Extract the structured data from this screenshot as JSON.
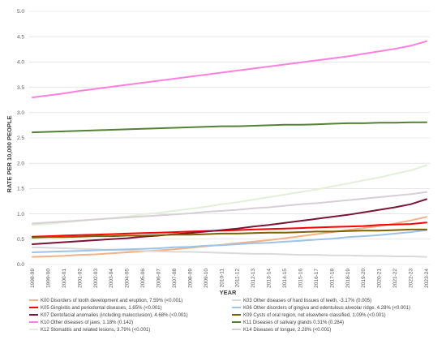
{
  "chart_data": {
    "type": "line",
    "xlabel": "YEAR",
    "ylabel": "RATE PER 10,000 PEOPLE",
    "ylim": [
      0,
      5.0
    ],
    "y_ticks": [
      "0.0",
      "0.5",
      "1.0",
      "1.5",
      "2.0",
      "2.5",
      "3.0",
      "3.5",
      "4.0",
      "4.5",
      "5.0"
    ],
    "grid": "horizontal",
    "legend_position": "bottom",
    "x": [
      "1998-99",
      "1999-00",
      "2000-01",
      "2001-02",
      "2002-03",
      "2003-04",
      "2004-05",
      "2005-06",
      "2006-07",
      "2007-08",
      "2008-09",
      "2009-10",
      "2010-11",
      "2011-12",
      "2012-13",
      "2013-14",
      "2014-15",
      "2015-16",
      "2016-17",
      "2017-18",
      "2018-19",
      "2019-20",
      "2020-21",
      "2021-22",
      "2022-23",
      "2023-24"
    ],
    "series": [
      {
        "name": "K00 Disorders of tooth development and eruption, 7.59% (<0.001)",
        "color": "#f4b183",
        "values": [
          0.15,
          0.16,
          0.17,
          0.19,
          0.2,
          0.22,
          0.24,
          0.26,
          0.28,
          0.3,
          0.33,
          0.36,
          0.39,
          0.42,
          0.45,
          0.48,
          0.52,
          0.56,
          0.6,
          0.64,
          0.68,
          0.72,
          0.76,
          0.81,
          0.87,
          0.94
        ]
      },
      {
        "name": "K03 Other diseases of hard tissues of teeth, -3.17% (0.005)",
        "color": "#d9d9d9",
        "values": [
          0.34,
          0.33,
          0.32,
          0.31,
          0.3,
          0.29,
          0.28,
          0.27,
          0.26,
          0.25,
          0.25,
          0.24,
          0.23,
          0.22,
          0.21,
          0.21,
          0.2,
          0.19,
          0.19,
          0.18,
          0.18,
          0.17,
          0.17,
          0.16,
          0.16,
          0.15
        ]
      },
      {
        "name": "K05 Gingivitis and periodontal diseases, 1.65% (<0.001)",
        "color": "#ff0000",
        "values": [
          0.55,
          0.56,
          0.57,
          0.58,
          0.59,
          0.6,
          0.61,
          0.62,
          0.63,
          0.64,
          0.65,
          0.66,
          0.67,
          0.68,
          0.69,
          0.7,
          0.71,
          0.72,
          0.73,
          0.74,
          0.75,
          0.76,
          0.78,
          0.79,
          0.8,
          0.83
        ]
      },
      {
        "name": "K06 Other disorders of gingiva and edentulous alveolar ridge, 4.28% (<0.001)",
        "color": "#9dc3e6",
        "values": [
          0.24,
          0.25,
          0.26,
          0.27,
          0.28,
          0.29,
          0.3,
          0.31,
          0.32,
          0.34,
          0.35,
          0.37,
          0.38,
          0.4,
          0.42,
          0.43,
          0.45,
          0.47,
          0.49,
          0.51,
          0.54,
          0.56,
          0.58,
          0.61,
          0.64,
          0.68
        ]
      },
      {
        "name": "K07 Dentofacial anomalies (including malocclusion), 4.68% (<0.001)",
        "color": "#7b1535",
        "values": [
          0.4,
          0.42,
          0.44,
          0.46,
          0.48,
          0.5,
          0.52,
          0.55,
          0.57,
          0.6,
          0.62,
          0.65,
          0.68,
          0.71,
          0.75,
          0.78,
          0.82,
          0.86,
          0.9,
          0.94,
          0.98,
          1.03,
          1.08,
          1.13,
          1.19,
          1.29
        ]
      },
      {
        "name": "K09 Cysts of oral region, not elsewhere classified, 1.09% (<0.001)",
        "color": "#806000",
        "values": [
          0.53,
          0.54,
          0.54,
          0.55,
          0.56,
          0.56,
          0.57,
          0.57,
          0.58,
          0.59,
          0.59,
          0.6,
          0.61,
          0.61,
          0.62,
          0.63,
          0.63,
          0.64,
          0.65,
          0.65,
          0.66,
          0.67,
          0.67,
          0.68,
          0.69,
          0.69
        ]
      },
      {
        "name": "K10 Other diseases of jaws, 1.18% (0.142)",
        "color": "#ff7fe0",
        "values": [
          3.3,
          3.34,
          3.38,
          3.43,
          3.47,
          3.51,
          3.55,
          3.59,
          3.63,
          3.67,
          3.71,
          3.75,
          3.79,
          3.83,
          3.87,
          3.91,
          3.95,
          3.99,
          4.03,
          4.07,
          4.11,
          4.16,
          4.21,
          4.26,
          4.32,
          4.41
        ]
      },
      {
        "name": "K11 Diseases of salivary glands 0.31% (0.284)",
        "color": "#548235",
        "values": [
          2.61,
          2.62,
          2.63,
          2.64,
          2.65,
          2.66,
          2.67,
          2.68,
          2.69,
          2.7,
          2.71,
          2.72,
          2.73,
          2.73,
          2.74,
          2.75,
          2.76,
          2.76,
          2.77,
          2.78,
          2.79,
          2.79,
          2.8,
          2.8,
          2.81,
          2.81
        ]
      },
      {
        "name": "K12 Stomatitis and related lesions, 3.79% (<0.001)",
        "color": "#e2f0d9",
        "values": [
          0.78,
          0.8,
          0.83,
          0.86,
          0.89,
          0.92,
          0.95,
          0.99,
          1.02,
          1.06,
          1.1,
          1.14,
          1.19,
          1.23,
          1.28,
          1.33,
          1.38,
          1.43,
          1.48,
          1.54,
          1.6,
          1.66,
          1.72,
          1.79,
          1.86,
          1.96
        ]
      },
      {
        "name": "K14 Diseases of tongue, 2.28% (<0.001)",
        "color": "#d6cfd6",
        "values": [
          0.81,
          0.83,
          0.85,
          0.87,
          0.89,
          0.91,
          0.93,
          0.95,
          0.97,
          0.99,
          1.01,
          1.04,
          1.06,
          1.08,
          1.11,
          1.13,
          1.16,
          1.19,
          1.21,
          1.24,
          1.27,
          1.3,
          1.33,
          1.36,
          1.39,
          1.43
        ]
      }
    ]
  }
}
